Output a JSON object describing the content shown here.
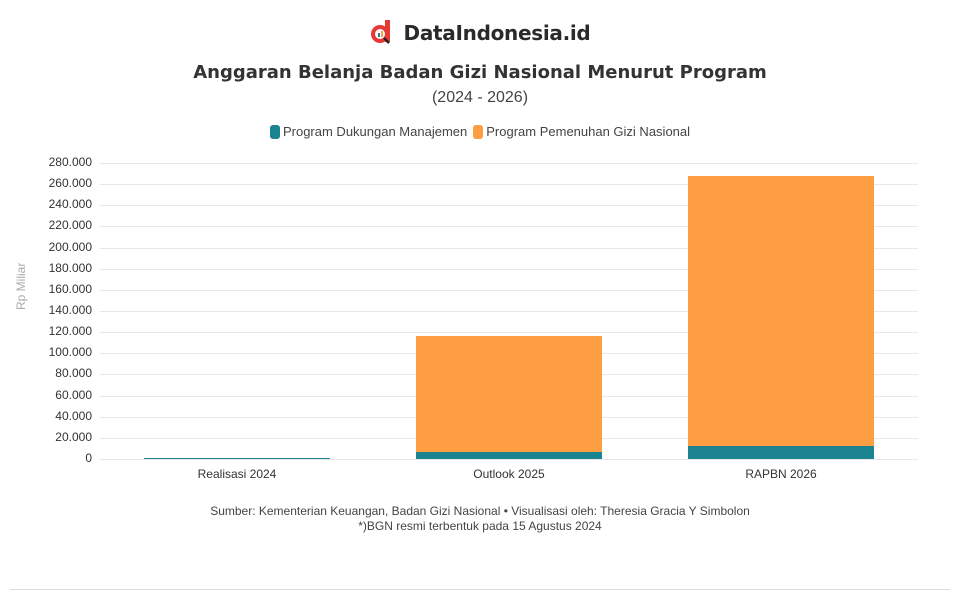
{
  "brand": {
    "name": "DataIndonesia.id",
    "icon": "dataindonesia-logo-icon",
    "accent": "#e53935"
  },
  "header": {
    "title": "Anggaran Belanja Badan Gizi Nasional Menurut Program",
    "subtitle": "(2024 - 2026)"
  },
  "legend": [
    {
      "label": "Program Dukungan Manajemen",
      "color": "#1b8490"
    },
    {
      "label": "Program Pemenuhan Gizi Nasional",
      "color": "#fe9e42"
    }
  ],
  "axis": {
    "ylabel": "Rp Miliar",
    "yticks": [
      "0",
      "20.000",
      "40.000",
      "60.000",
      "80.000",
      "100.000",
      "120.000",
      "140.000",
      "160.000",
      "180.000",
      "200.000",
      "220.000",
      "240.000",
      "260.000",
      "280.000"
    ]
  },
  "chart_data": {
    "type": "bar",
    "stacked": true,
    "title": "Anggaran Belanja Badan Gizi Nasional Menurut Program",
    "subtitle": "(2024 - 2026)",
    "xlabel": "",
    "ylabel": "Rp Miliar",
    "ylim": [
      0,
      280000
    ],
    "grid": true,
    "legend_position": "top",
    "categories": [
      "Realisasi 2024",
      "Outlook 2025",
      "RAPBN 2026"
    ],
    "series": [
      {
        "name": "Program Dukungan Manajemen",
        "color": "#1b8490",
        "values": [
          200,
          6600,
          12300
        ]
      },
      {
        "name": "Program Pemenuhan Gizi Nasional",
        "color": "#fe9e42",
        "values": [
          0,
          109800,
          255400
        ]
      }
    ]
  },
  "footer": {
    "source": "Sumber: Kementerian Keuangan, Badan Gizi Nasional • Visualisasi oleh: Theresia Gracia Y Simbolon",
    "note": "*)BGN resmi terbentuk pada 15 Agustus 2024"
  }
}
